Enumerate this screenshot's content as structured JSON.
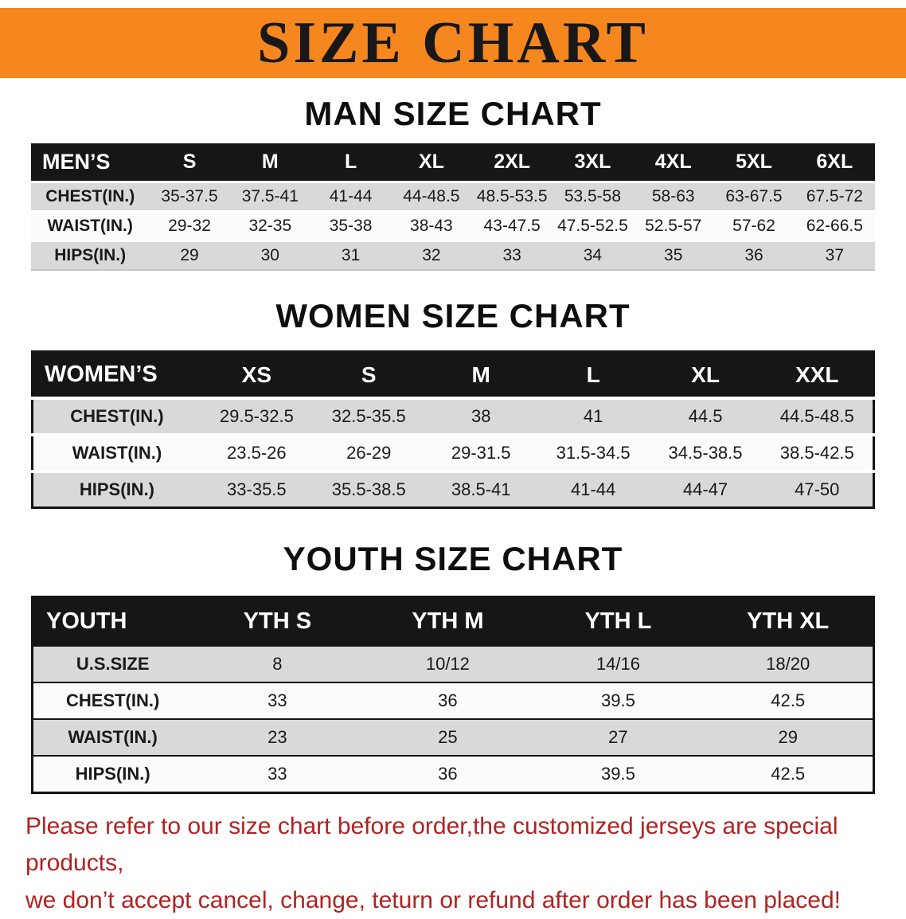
{
  "colors": {
    "banner_bg": "#f6861e",
    "header_bg": "#161616",
    "row_gray": "#d9d9d9",
    "disclaimer_text": "#b22222"
  },
  "banner": {
    "title": "SIZE CHART"
  },
  "sections": [
    {
      "id": "men",
      "heading": "MAN SIZE CHART",
      "table": {
        "header": [
          "MEN’S",
          "S",
          "M",
          "L",
          "XL",
          "2XL",
          "3XL",
          "4XL",
          "5XL",
          "6XL"
        ],
        "rows": [
          {
            "label": "CHEST(IN.)",
            "values": [
              "35-37.5",
              "37.5-41",
              "41-44",
              "44-48.5",
              "48.5-53.5",
              "53.5-58",
              "58-63",
              "63-67.5",
              "67.5-72"
            ]
          },
          {
            "label": "WAIST(IN.)",
            "values": [
              "29-32",
              "32-35",
              "35-38",
              "38-43",
              "43-47.5",
              "47.5-52.5",
              "52.5-57",
              "57-62",
              "62-66.5"
            ]
          },
          {
            "label": "HIPS(IN.)",
            "values": [
              "29",
              "30",
              "31",
              "32",
              "33",
              "34",
              "35",
              "36",
              "37"
            ]
          }
        ]
      }
    },
    {
      "id": "women",
      "heading": "WOMEN SIZE CHART",
      "table": {
        "header": [
          "WOMEN’S",
          "XS",
          "S",
          "M",
          "L",
          "XL",
          "XXL"
        ],
        "rows": [
          {
            "label": "CHEST(IN.)",
            "values": [
              "29.5-32.5",
              "32.5-35.5",
              "38",
              "41",
              "44.5",
              "44.5-48.5"
            ]
          },
          {
            "label": "WAIST(IN.)",
            "values": [
              "23.5-26",
              "26-29",
              "29-31.5",
              "31.5-34.5",
              "34.5-38.5",
              "38.5-42.5"
            ]
          },
          {
            "label": "HIPS(IN.)",
            "values": [
              "33-35.5",
              "35.5-38.5",
              "38.5-41",
              "41-44",
              "44-47",
              "47-50"
            ]
          }
        ]
      }
    },
    {
      "id": "youth",
      "heading": "YOUTH SIZE CHART",
      "table": {
        "header": [
          "YOUTH",
          "YTH S",
          "YTH M",
          "YTH L",
          "YTH XL"
        ],
        "rows": [
          {
            "label": "U.S.SIZE",
            "values": [
              "8",
              "10/12",
              "14/16",
              "18/20"
            ]
          },
          {
            "label": "CHEST(IN.)",
            "values": [
              "33",
              "36",
              "39.5",
              "42.5"
            ]
          },
          {
            "label": "WAIST(IN.)",
            "values": [
              "23",
              "25",
              "27",
              "29"
            ]
          },
          {
            "label": "HIPS(IN.)",
            "values": [
              "33",
              "36",
              "39.5",
              "42.5"
            ]
          }
        ]
      }
    }
  ],
  "footer": {
    "line1": "Please refer to our size chart before order,the customized jerseys are special products,",
    "line2": "we don’t accept cancel, change, teturn or refund after order has been placed!"
  }
}
